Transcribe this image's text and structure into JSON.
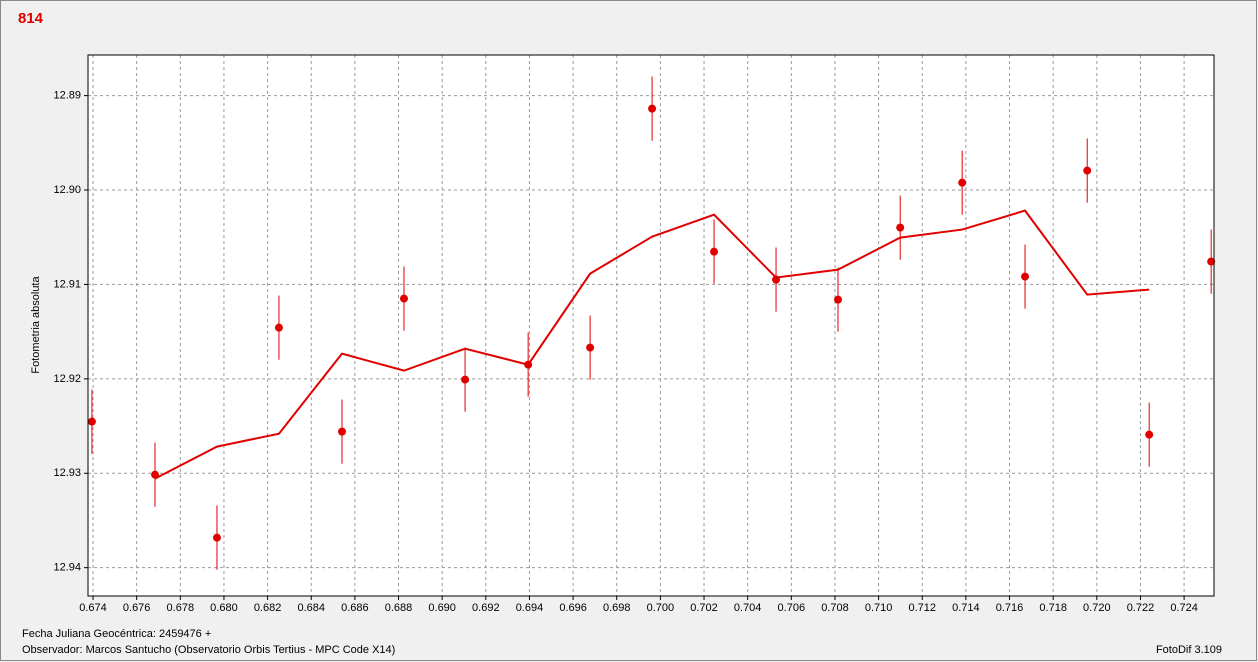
{
  "chart_data": {
    "type": "scatter",
    "title": "814",
    "ylabel": "Fotometria absoluta",
    "xlim": [
      0.67377,
      0.72537
    ],
    "ylim": [
      12.943,
      12.8857
    ],
    "xticks": [
      0.674,
      0.676,
      0.678,
      {
        "value": 0.68,
        "label": "0.680"
      },
      0.682,
      0.684,
      0.686,
      0.688,
      {
        "value": 0.69,
        "label": "0.690"
      },
      0.692,
      0.694,
      0.696,
      0.698,
      {
        "value": 0.7,
        "label": "0.700"
      },
      0.702,
      0.704,
      0.706,
      0.708,
      {
        "value": 0.71,
        "label": "0.710"
      },
      0.712,
      0.714,
      0.716,
      0.718,
      {
        "value": 0.72,
        "label": "0.720"
      },
      0.722,
      0.724
    ],
    "yticks": [
      12.89,
      {
        "value": 12.9,
        "label": "12.90"
      },
      12.91,
      12.92,
      12.93,
      12.94
    ],
    "grid": true,
    "series": [
      {
        "type": "scatter",
        "color": "#e00000",
        "x": [
          0.67395,
          0.67684,
          0.67968,
          0.68252,
          0.68541,
          0.68825,
          0.69105,
          0.69394,
          0.69678,
          0.69962,
          0.70246,
          0.7053,
          0.70814,
          0.71099,
          0.71383,
          0.71671,
          0.71956,
          0.7224,
          0.72524
        ],
        "values": [
          12.92453,
          12.93015,
          12.93682,
          12.91458,
          12.92559,
          12.9115,
          12.92008,
          12.9185,
          12.91669,
          12.89138,
          12.90653,
          12.90949,
          12.91161,
          12.90398,
          12.89922,
          12.90917,
          12.89794,
          12.92591,
          12.90758
        ],
        "errors": [
          0.0034,
          0.0034,
          0.0034,
          0.0034,
          0.0034,
          0.0034,
          0.0034,
          0.0034,
          0.0034,
          0.0034,
          0.0034,
          0.0034,
          0.0034,
          0.0034,
          0.0034,
          0.0034,
          0.0034,
          0.0034,
          0.0034
        ]
      },
      {
        "type": "line",
        "color": "#e00000",
        "x": [
          0.67684,
          0.67968,
          0.68252,
          0.68541,
          0.68825,
          0.69105,
          0.69394,
          0.69678,
          0.69962,
          0.70246,
          0.7053,
          0.70814,
          0.71099,
          0.71383,
          0.71671,
          0.71956,
          0.7224
        ],
        "values": [
          12.93057,
          12.92718,
          12.92581,
          12.91733,
          12.91913,
          12.9168,
          12.9185,
          12.90886,
          12.90494,
          12.90261,
          12.90928,
          12.90843,
          12.90504,
          12.90419,
          12.90218,
          12.91108,
          12.91055
        ]
      }
    ]
  },
  "footer": {
    "date": "Fecha Juliana Geocéntrica: 2459476 +",
    "observer": "Observador: Marcos Santucho (Observatorio Orbis Tertius - MPC Code X14)",
    "software": "FotoDif 3.109"
  }
}
